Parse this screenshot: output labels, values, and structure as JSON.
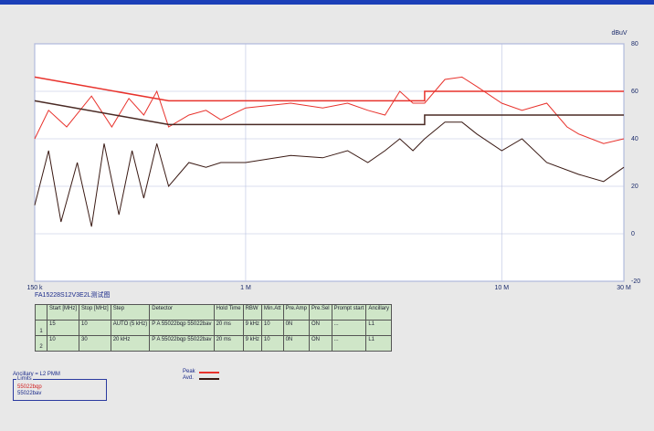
{
  "chart_data": {
    "type": "line",
    "y_unit": "dBuV",
    "log_x": true,
    "grid": true,
    "xlim": [
      0.15,
      30
    ],
    "xticks": [
      {
        "value": 0.15,
        "label": "150 k"
      },
      {
        "value": 1,
        "label": "1 M"
      },
      {
        "value": 10,
        "label": "10 M"
      },
      {
        "value": 30,
        "label": "30 M"
      }
    ],
    "ylim": [
      -20,
      80
    ],
    "yticks": [
      -20,
      0,
      20,
      40,
      60,
      80
    ],
    "series": [
      {
        "name": "Peak",
        "color": "#e8322c",
        "x": [
          0.15,
          0.17,
          0.2,
          0.25,
          0.3,
          0.35,
          0.4,
          0.45,
          0.5,
          0.6,
          0.7,
          0.8,
          1,
          1.5,
          2,
          2.5,
          3,
          3.5,
          4,
          4.5,
          5,
          6,
          7,
          8,
          10,
          12,
          15,
          18,
          20,
          25,
          30
        ],
        "values": [
          40,
          52,
          45,
          58,
          45,
          57,
          50,
          60,
          45,
          50,
          52,
          48,
          53,
          55,
          53,
          55,
          52,
          50,
          60,
          55,
          55,
          65,
          66,
          62,
          55,
          52,
          55,
          45,
          42,
          38,
          40
        ]
      },
      {
        "name": "Avd.",
        "color": "#3a1a14",
        "x": [
          0.15,
          0.17,
          0.19,
          0.22,
          0.25,
          0.28,
          0.32,
          0.36,
          0.4,
          0.45,
          0.5,
          0.6,
          0.7,
          0.8,
          1,
          1.5,
          2,
          2.5,
          3,
          3.5,
          4,
          4.5,
          5,
          6,
          7,
          8,
          10,
          12,
          15,
          20,
          25,
          30
        ],
        "values": [
          12,
          35,
          5,
          30,
          3,
          38,
          8,
          35,
          15,
          38,
          20,
          30,
          28,
          30,
          30,
          33,
          32,
          35,
          30,
          35,
          40,
          35,
          40,
          47,
          47,
          42,
          35,
          40,
          30,
          25,
          22,
          28
        ]
      }
    ],
    "limits": [
      {
        "name": "55022bqp",
        "color": "#e8322c",
        "x": [
          0.15,
          0.5,
          5,
          5,
          30
        ],
        "values": [
          66,
          56,
          56,
          60,
          60
        ]
      },
      {
        "name": "55022bav",
        "color": "#4a2a24",
        "x": [
          0.15,
          0.5,
          5,
          5,
          30
        ],
        "values": [
          56,
          46,
          46,
          50,
          50
        ]
      }
    ]
  },
  "test_name": "FA15228S12V3E2L测试图",
  "table": {
    "header": [
      "",
      "Start [MHz]",
      "Stop [MHz]",
      "Step",
      "Detector",
      "Hold Time",
      "RBW",
      "Min.Att",
      "Pre.Amp",
      "Pre.Sel",
      "Prompt start",
      "Ancillary"
    ],
    "rows": [
      [
        "1",
        "15",
        "10",
        "AUTO (5 kHz)",
        "P A 55022bqp 55022bav",
        "20 ms",
        "9 kHz",
        "10",
        "0N",
        "ON",
        "...",
        "L1"
      ],
      [
        "2",
        "10",
        "30",
        "20 kHz",
        "P A 55022bqp 55022bav",
        "20 ms",
        "9 kHz",
        "10",
        "0N",
        "ON",
        "...",
        "L1"
      ]
    ]
  },
  "ancillary": "Ancillary = L2 PMM",
  "limits_title": "Limits"
}
